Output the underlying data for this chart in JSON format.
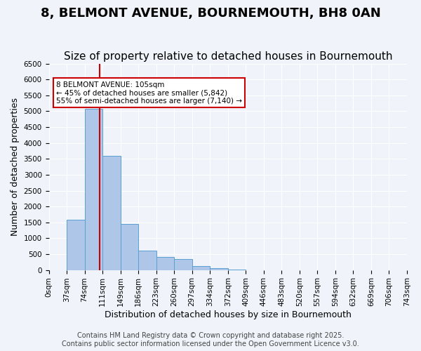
{
  "title": "8, BELMONT AVENUE, BOURNEMOUTH, BH8 0AN",
  "subtitle": "Size of property relative to detached houses in Bournemouth",
  "xlabel": "Distribution of detached houses by size in Bournemouth",
  "ylabel": "Number of detached properties",
  "bin_labels": [
    "0sqm",
    "37sqm",
    "74sqm",
    "111sqm",
    "149sqm",
    "186sqm",
    "223sqm",
    "260sqm",
    "297sqm",
    "334sqm",
    "372sqm",
    "409sqm",
    "446sqm",
    "483sqm",
    "520sqm",
    "557sqm",
    "594sqm",
    "632sqm",
    "669sqm",
    "706sqm",
    "743sqm"
  ],
  "bar_values": [
    0,
    1580,
    5080,
    3600,
    1450,
    620,
    420,
    340,
    130,
    60,
    20,
    0,
    0,
    0,
    0,
    0,
    0,
    0,
    0,
    0
  ],
  "bar_color": "#aec6e8",
  "bar_edgecolor": "#5a9fd4",
  "vline_x": 2.838,
  "vline_color": "#cc0000",
  "annotation_text": "8 BELMONT AVENUE: 105sqm\n← 45% of detached houses are smaller (5,842)\n55% of semi-detached houses are larger (7,140) →",
  "annotation_box_color": "#ffffff",
  "annotation_box_edgecolor": "#cc0000",
  "ylim": [
    0,
    6500
  ],
  "yticks": [
    0,
    500,
    1000,
    1500,
    2000,
    2500,
    3000,
    3500,
    4000,
    4500,
    5000,
    5500,
    6000,
    6500
  ],
  "footnote": "Contains HM Land Registry data © Crown copyright and database right 2025.\nContains public sector information licensed under the Open Government Licence v3.0.",
  "bg_color": "#f0f4fa",
  "grid_color": "#ffffff",
  "title_fontsize": 13,
  "subtitle_fontsize": 11,
  "label_fontsize": 9,
  "tick_fontsize": 7.5,
  "footnote_fontsize": 7
}
